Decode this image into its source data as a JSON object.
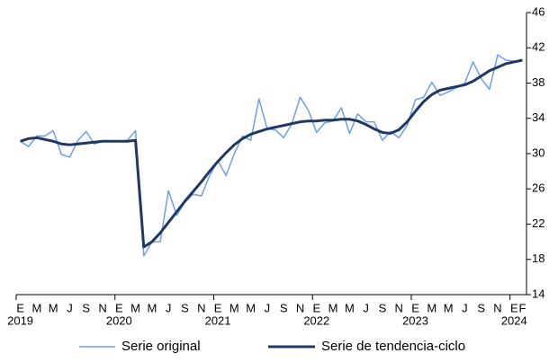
{
  "chart_data": {
    "type": "line",
    "categories": [
      "E",
      null,
      "M",
      null,
      "M",
      null,
      "J",
      null,
      "S",
      null,
      "N",
      null,
      "E",
      null,
      "M",
      null,
      "M",
      null,
      "J",
      null,
      "S",
      null,
      "N",
      null,
      "E",
      null,
      "M",
      null,
      "M",
      null,
      "J",
      null,
      "S",
      null,
      "N",
      null,
      "E",
      null,
      "M",
      null,
      "M",
      null,
      "J",
      null,
      "S",
      null,
      "N",
      null,
      "E",
      null,
      "M",
      null,
      "M",
      null,
      "J",
      null,
      "S",
      null,
      "N",
      null,
      "E",
      "F"
    ],
    "category_years": [
      "2019",
      null,
      null,
      null,
      null,
      null,
      null,
      null,
      null,
      null,
      null,
      null,
      "2020",
      null,
      null,
      null,
      null,
      null,
      null,
      null,
      null,
      null,
      null,
      null,
      "2021",
      null,
      null,
      null,
      null,
      null,
      null,
      null,
      null,
      null,
      null,
      null,
      "2022",
      null,
      null,
      null,
      null,
      null,
      null,
      null,
      null,
      null,
      null,
      null,
      "2023",
      null,
      null,
      null,
      null,
      null,
      null,
      null,
      null,
      null,
      null,
      null,
      "2024",
      null
    ],
    "series": [
      {
        "name": "Serie original",
        "color": "#6d9eeb",
        "width": 1.5,
        "values": [
          31.4,
          30.8,
          32.0,
          32.0,
          32.6,
          29.9,
          29.6,
          31.5,
          32.5,
          31.1,
          31.4,
          31.4,
          31.4,
          31.5,
          32.6,
          18.4,
          20.0,
          20.0,
          25.8,
          23.0,
          24.5,
          25.4,
          25.2,
          27.5,
          29.2,
          27.5,
          30.0,
          32.0,
          31.5,
          36.2,
          32.8,
          32.7,
          31.8,
          33.4,
          36.4,
          34.9,
          32.4,
          33.5,
          33.7,
          35.2,
          32.3,
          34.5,
          33.6,
          33.6,
          31.5,
          32.5,
          31.8,
          33.2,
          36.1,
          36.4,
          38.1,
          36.6,
          37.0,
          37.5,
          38.0,
          40.4,
          38.5,
          37.3,
          41.2,
          40.6,
          40.5,
          40.6
        ]
      },
      {
        "name": "Serie de tendencia-ciclo",
        "color": "#1f3864",
        "width": 3,
        "values": [
          31.4,
          31.7,
          31.8,
          31.6,
          31.4,
          31.1,
          31.0,
          31.1,
          31.2,
          31.3,
          31.4,
          31.4,
          31.4,
          31.4,
          31.5,
          19.4,
          20.0,
          21.0,
          22.2,
          23.4,
          24.6,
          25.7,
          26.8,
          28.0,
          29.1,
          30.1,
          31.0,
          31.7,
          32.2,
          32.5,
          32.8,
          33.0,
          33.2,
          33.4,
          33.6,
          33.7,
          33.7,
          33.8,
          33.8,
          33.9,
          33.9,
          33.7,
          33.3,
          32.8,
          32.4,
          32.3,
          32.7,
          33.6,
          34.8,
          35.9,
          36.7,
          37.2,
          37.4,
          37.6,
          37.8,
          38.2,
          38.8,
          39.4,
          39.8,
          40.2,
          40.4,
          40.6
        ]
      }
    ],
    "ylim": [
      14,
      46
    ],
    "yticks": [
      14,
      18,
      22,
      26,
      30,
      34,
      38,
      42,
      46
    ],
    "y_axis_side": "right"
  }
}
